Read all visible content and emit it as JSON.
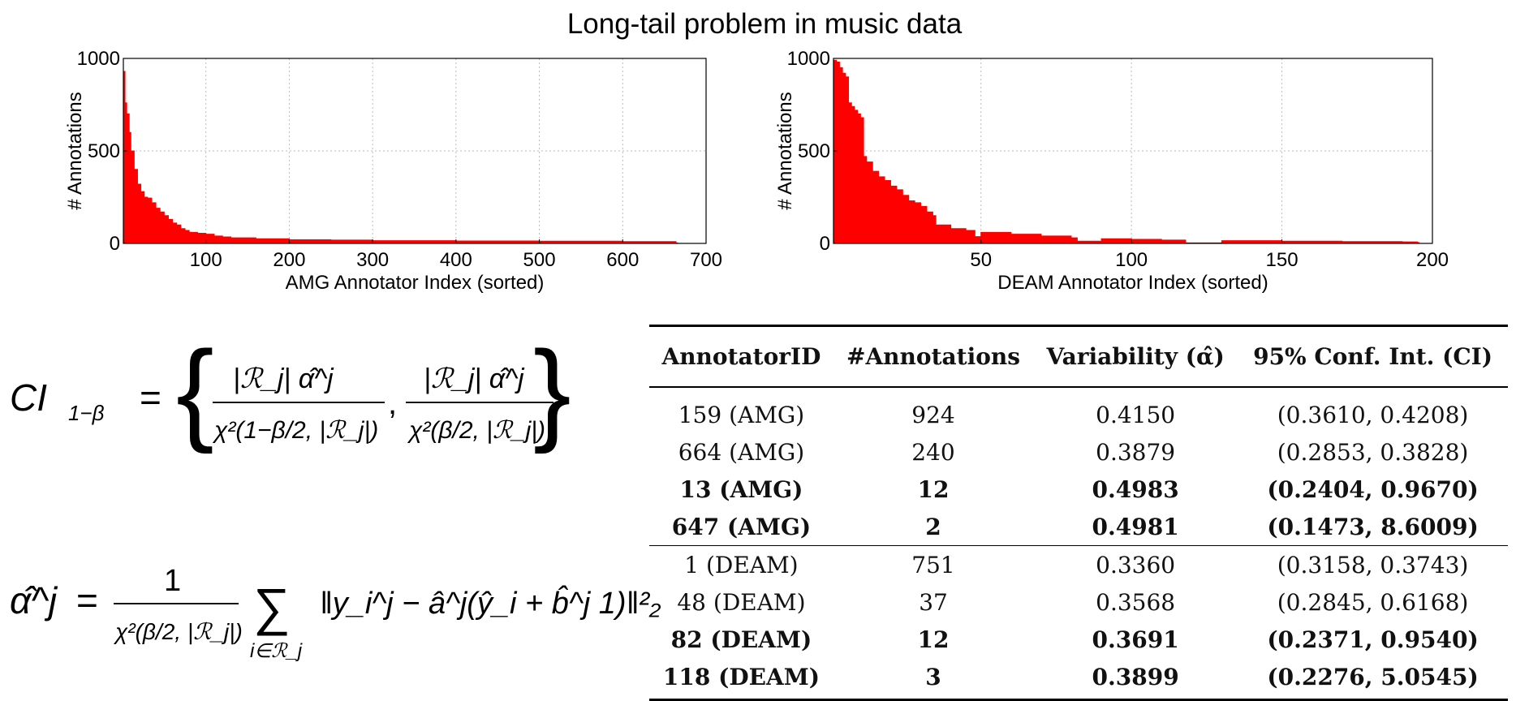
{
  "page_title": "Long-tail problem in music data",
  "chart_data": [
    {
      "type": "area",
      "xlabel": "AMG Annotator Index (sorted)",
      "ylabel": "# Annotations",
      "xlim": [
        1,
        700
      ],
      "ylim": [
        0,
        1000
      ],
      "xticks": [
        100,
        200,
        300,
        400,
        500,
        600,
        700
      ],
      "yticks": [
        0,
        500,
        1000
      ],
      "grid": true,
      "color": "#ff0000",
      "x": [
        1,
        2,
        3,
        5,
        8,
        10,
        14,
        18,
        22,
        26,
        30,
        35,
        40,
        45,
        50,
        55,
        60,
        65,
        70,
        75,
        80,
        90,
        100,
        110,
        120,
        130,
        160,
        200,
        250,
        300,
        400,
        500,
        600,
        664
      ],
      "y": [
        924,
        930,
        760,
        700,
        600,
        500,
        400,
        320,
        280,
        250,
        245,
        220,
        190,
        170,
        150,
        130,
        110,
        100,
        80,
        70,
        60,
        55,
        50,
        40,
        35,
        30,
        25,
        20,
        18,
        15,
        13,
        12,
        10,
        2
      ]
    },
    {
      "type": "area",
      "xlabel": "DEAM Annotator Index (sorted)",
      "ylabel": "# Annotations",
      "xlim": [
        1,
        200
      ],
      "ylim": [
        0,
        1000
      ],
      "xticks": [
        50,
        100,
        150,
        200
      ],
      "yticks": [
        0,
        500,
        1000
      ],
      "grid": true,
      "color": "#ff0000",
      "x": [
        1,
        2,
        3,
        4,
        5,
        6,
        7,
        8,
        9,
        10,
        11,
        12,
        14,
        16,
        18,
        20,
        22,
        24,
        26,
        28,
        30,
        32,
        34,
        35,
        40,
        45,
        48,
        50,
        60,
        70,
        80,
        82,
        90,
        100,
        110,
        118,
        130,
        150,
        170,
        190,
        195
      ],
      "y": [
        990,
        980,
        950,
        920,
        900,
        760,
        740,
        720,
        700,
        680,
        470,
        440,
        390,
        360,
        340,
        310,
        290,
        260,
        230,
        220,
        200,
        170,
        150,
        100,
        80,
        70,
        37,
        60,
        50,
        40,
        30,
        12,
        25,
        22,
        18,
        3,
        15,
        12,
        10,
        8,
        5
      ]
    }
  ],
  "formulas": {
    "ci_lhs": "CI",
    "ci_sub": "1−β",
    "ci_eq": " = ",
    "ci_num": "|ℛ_j| α̂^j",
    "ci_den_left": "χ²(1−β/2, |ℛ_j|)",
    "ci_den_right": "χ²(β/2, |ℛ_j|)",
    "alpha_lhs": "α̂^j",
    "alpha_num": "1",
    "alpha_den": "χ²(β/2, |ℛ_j|)",
    "alpha_sum_sub": "i∈ℛ_j",
    "alpha_body": "‖y_i^j − â^j(ŷ_i + b̂^j 1)‖²₂"
  },
  "table": {
    "headers": [
      "AnnotatorID",
      "#Annotations",
      "Variability (α̂)",
      "95% Conf. Int. (CI)"
    ],
    "rows": [
      {
        "id": "159 (AMG)",
        "n": "924",
        "var": "0.4150",
        "ci": "(0.3610, 0.4208)",
        "bold": false
      },
      {
        "id": "664 (AMG)",
        "n": "240",
        "var": "0.3879",
        "ci": "(0.2853, 0.3828)",
        "bold": false
      },
      {
        "id": "13 (AMG)",
        "n": "12",
        "var": "0.4983",
        "ci": "(0.2404, 0.9670)",
        "bold": true
      },
      {
        "id": "647 (AMG)",
        "n": "2",
        "var": "0.4981",
        "ci": "(0.1473, 8.6009)",
        "bold": true
      },
      {
        "id": "1 (DEAM)",
        "n": "751",
        "var": "0.3360",
        "ci": "(0.3158, 0.3743)",
        "bold": false
      },
      {
        "id": "48 (DEAM)",
        "n": "37",
        "var": "0.3568",
        "ci": "(0.2845, 0.6168)",
        "bold": false
      },
      {
        "id": "82 (DEAM)",
        "n": "12",
        "var": "0.3691",
        "ci": "(0.2371, 0.9540)",
        "bold": true
      },
      {
        "id": "118 (DEAM)",
        "n": "3",
        "var": "0.3899",
        "ci": "(0.2276, 5.0545)",
        "bold": true
      }
    ]
  }
}
